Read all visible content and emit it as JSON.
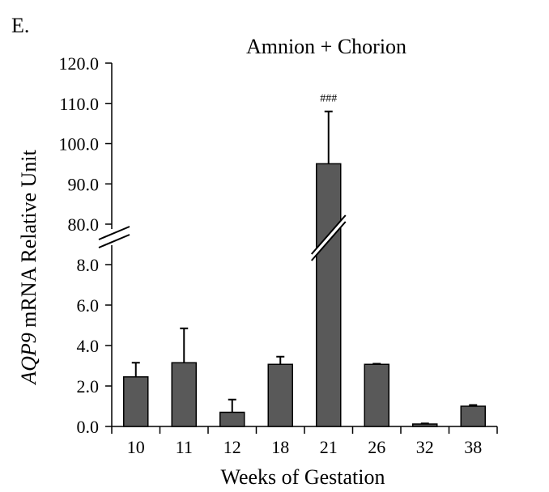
{
  "panel_label": "E.",
  "chart_data": {
    "type": "bar",
    "title": "Amnion + Chorion",
    "xlabel": "Weeks of Gestation",
    "ylabel_italic": "AQP9",
    "ylabel_rest": " mRNA Relative Unit",
    "categories": [
      "10",
      "11",
      "12",
      "18",
      "21",
      "26",
      "32",
      "38"
    ],
    "values": [
      2.45,
      3.15,
      0.7,
      3.07,
      95.0,
      3.07,
      0.12,
      1.0
    ],
    "errors": [
      0.7,
      1.7,
      0.63,
      0.38,
      13.0,
      0.03,
      0.03,
      0.06
    ],
    "significance": [
      "",
      "",
      "",
      "",
      "###",
      "",
      "",
      ""
    ],
    "y_axis_broken": true,
    "ylim_lower": [
      0,
      8
    ],
    "ylim_upper": [
      80,
      120
    ],
    "yticks_lower": [
      "0.0",
      "2.0",
      "4.0",
      "6.0",
      "8.0"
    ],
    "yticks_upper": [
      "80.0",
      "90.0",
      "100.0",
      "110.0",
      "120.0"
    ],
    "grid": false,
    "colors": {
      "bar": "#595959",
      "bar_edge": "#000000",
      "axis": "#000000"
    }
  }
}
